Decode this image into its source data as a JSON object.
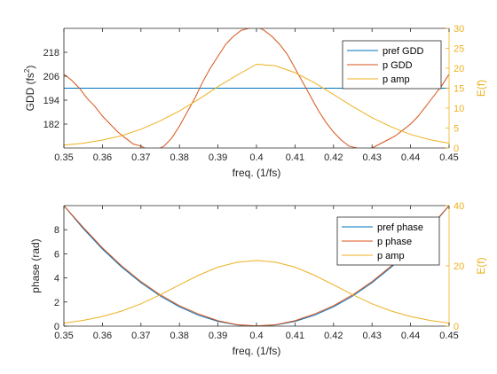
{
  "colors": {
    "pref": "#0072BD",
    "p": "#D95319",
    "amp": "#EDB120",
    "axis": "#262626",
    "right_axis": "#EDB120"
  },
  "chart_data": [
    {
      "type": "line",
      "xlabel": "freq. (1/fs)",
      "ylabel": "GDD (fs",
      "ylabel_sup": "2",
      "ylabel_close": ")",
      "ylabel_right": "E(f)",
      "xlim": [
        0.35,
        0.45
      ],
      "ylim_left": [
        170,
        230
      ],
      "ylim_right": [
        0,
        30
      ],
      "x_ticks": [
        "0.35",
        "0.36",
        "0.37",
        "0.38",
        "0.39",
        "0.4",
        "0.41",
        "0.42",
        "0.43",
        "0.44",
        "0.45"
      ],
      "y_ticks_left": [
        "182",
        "194",
        "206",
        "218"
      ],
      "y_ticks_right": [
        "0",
        "5",
        "10",
        "15",
        "20",
        "25",
        "30"
      ],
      "legend": [
        "pref GDD",
        "p GDD",
        "p amp"
      ],
      "legend_position": "top-right",
      "series": [
        {
          "name": "pref GDD",
          "axis": "left",
          "color_key": "pref",
          "x": [
            0.35,
            0.45
          ],
          "y": [
            200,
            200
          ]
        },
        {
          "name": "p GDD",
          "axis": "left",
          "color_key": "p",
          "x": [
            0.35,
            0.352,
            0.354,
            0.356,
            0.358,
            0.36,
            0.362,
            0.364,
            0.366,
            0.368,
            0.37,
            0.372,
            0.374,
            0.376,
            0.378,
            0.38,
            0.382,
            0.384,
            0.386,
            0.388,
            0.39,
            0.392,
            0.394,
            0.396,
            0.398,
            0.4,
            0.402,
            0.404,
            0.406,
            0.408,
            0.41,
            0.412,
            0.414,
            0.416,
            0.418,
            0.42,
            0.422,
            0.424,
            0.426,
            0.428,
            0.43,
            0.432,
            0.434,
            0.436,
            0.438,
            0.44,
            0.442,
            0.444,
            0.446,
            0.448,
            0.45
          ],
          "y": [
            207,
            204,
            200,
            195,
            191,
            186,
            182,
            178,
            175,
            172,
            171,
            169,
            169,
            171,
            175,
            181,
            188,
            195,
            203,
            210,
            216,
            222,
            226,
            229,
            230,
            231,
            229,
            226,
            222,
            217,
            210,
            203,
            196,
            189,
            183,
            178,
            174,
            171,
            170,
            169,
            170,
            172,
            174,
            176,
            179,
            182,
            186,
            191,
            196,
            201,
            207
          ]
        },
        {
          "name": "p amp",
          "axis": "right",
          "color_key": "amp",
          "x": [
            0.35,
            0.355,
            0.36,
            0.365,
            0.37,
            0.375,
            0.38,
            0.385,
            0.39,
            0.395,
            0.4,
            0.405,
            0.41,
            0.415,
            0.42,
            0.425,
            0.43,
            0.435,
            0.44,
            0.445,
            0.45
          ],
          "y": [
            0.7,
            1.2,
            2.0,
            3.1,
            4.7,
            6.8,
            9.3,
            12.2,
            15.4,
            18.3,
            21.0,
            20.6,
            18.9,
            16.4,
            13.4,
            10.4,
            7.6,
            5.3,
            3.4,
            2.1,
            1.2
          ]
        }
      ]
    },
    {
      "type": "line",
      "xlabel": "freq. (1/fs)",
      "ylabel": "phase (rad)",
      "ylabel_right": "E(f)",
      "xlim": [
        0.35,
        0.45
      ],
      "ylim_left": [
        0,
        10
      ],
      "ylim_right": [
        0,
        40
      ],
      "x_ticks": [
        "0.35",
        "0.36",
        "0.37",
        "0.38",
        "0.39",
        "0.4",
        "0.41",
        "0.42",
        "0.43",
        "0.44",
        "0.45"
      ],
      "y_ticks_left": [
        "0",
        "2",
        "4",
        "6",
        "8"
      ],
      "y_ticks_right": [
        "0",
        "20",
        "40"
      ],
      "legend": [
        "pref phase",
        "p phase",
        "p amp"
      ],
      "legend_position": "top-right",
      "series": [
        {
          "name": "pref phase",
          "axis": "left",
          "color_key": "pref",
          "x": [
            0.35,
            0.355,
            0.36,
            0.365,
            0.37,
            0.375,
            0.38,
            0.385,
            0.39,
            0.395,
            0.4,
            0.405,
            0.41,
            0.415,
            0.42,
            0.425,
            0.43,
            0.435,
            0.44,
            0.445,
            0.45
          ],
          "y": [
            10.0,
            8.1,
            6.4,
            4.9,
            3.6,
            2.5,
            1.6,
            0.9,
            0.4,
            0.1,
            0.0,
            0.1,
            0.4,
            0.9,
            1.6,
            2.5,
            3.6,
            4.9,
            6.4,
            8.1,
            10.0
          ]
        },
        {
          "name": "p phase",
          "axis": "left",
          "color_key": "p",
          "x": [
            0.35,
            0.355,
            0.36,
            0.365,
            0.37,
            0.375,
            0.38,
            0.385,
            0.39,
            0.395,
            0.4,
            0.405,
            0.41,
            0.415,
            0.42,
            0.425,
            0.43,
            0.435,
            0.44,
            0.445,
            0.45
          ],
          "y": [
            10.0,
            8.2,
            6.5,
            5.0,
            3.7,
            2.6,
            1.7,
            1.0,
            0.45,
            0.12,
            0.02,
            0.12,
            0.45,
            1.0,
            1.7,
            2.6,
            3.7,
            5.0,
            6.5,
            8.2,
            10.0
          ]
        },
        {
          "name": "p amp",
          "axis": "right",
          "color_key": "amp",
          "x": [
            0.35,
            0.355,
            0.36,
            0.365,
            0.37,
            0.375,
            0.38,
            0.385,
            0.39,
            0.395,
            0.4,
            0.405,
            0.41,
            0.415,
            0.42,
            0.425,
            0.43,
            0.435,
            0.44,
            0.445,
            0.45
          ],
          "y": [
            1.0,
            1.9,
            3.2,
            5.0,
            7.4,
            10.4,
            13.7,
            16.9,
            19.6,
            21.2,
            21.8,
            21.2,
            19.6,
            16.9,
            13.7,
            10.4,
            7.4,
            5.0,
            3.2,
            1.9,
            1.0
          ]
        }
      ]
    }
  ]
}
